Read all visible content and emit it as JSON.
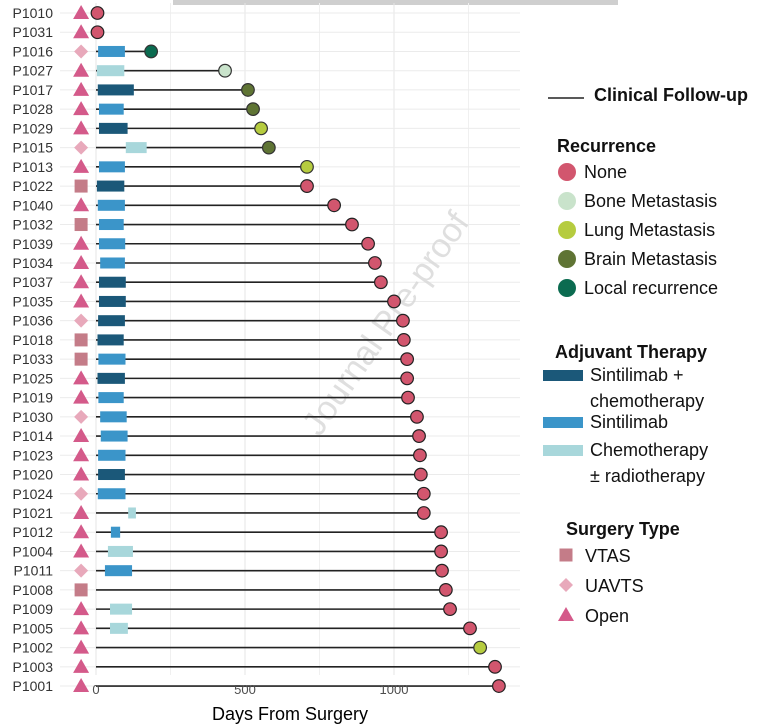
{
  "watermark": "Journal Pre-proof",
  "chart_data": {
    "type": "swimmer",
    "xlabel": "Days From Surgery",
    "xlim": [
      -120,
      1430
    ],
    "xticks": [
      0,
      500,
      1000
    ],
    "grid": true,
    "legend_position": "right",
    "colors": {
      "recurrence": {
        "None": "#d2566e",
        "Bone Metastasis": "#c9e3cb",
        "Lung Metastasis": "#b6cc3f",
        "Brain Metastasis": "#5f7434",
        "Local recurrence": "#0b6b50"
      },
      "therapy": {
        "Sintilimab + chemotherapy": "#1b5879",
        "Sintilimab": "#3b95c9",
        "Chemotherapy ± radiotherapy": "#a8d7db"
      },
      "surgery": {
        "VTAS": "#c47c88",
        "UAVTS": "#e8a9bb",
        "Open": "#d45a8a"
      },
      "followup_line": "#222222"
    },
    "legend": {
      "followup": "Clinical Follow-up",
      "recurrence_title": "Recurrence",
      "recurrence": [
        "None",
        "Bone Metastasis",
        "Lung Metastasis",
        "Brain Metastasis",
        "Local recurrence"
      ],
      "therapy_title": "Adjuvant Therapy",
      "therapy": [
        {
          "key": "Sintilimab + chemotherapy",
          "lines": [
            "Sintilimab +",
            "chemotherapy"
          ]
        },
        {
          "key": "Sintilimab",
          "lines": [
            "Sintilimab"
          ]
        },
        {
          "key": "Chemotherapy ± radiotherapy",
          "lines": [
            "Chemotherapy",
            "± radiotherapy"
          ]
        }
      ],
      "surgery_title": "Surgery Type",
      "surgery": [
        "VTAS",
        "UAVTS",
        "Open"
      ]
    },
    "patients": [
      {
        "id": "P1010",
        "surgery": "Open",
        "therapy": null,
        "therapy_days": null,
        "followup": 5,
        "recurrence": "None"
      },
      {
        "id": "P1031",
        "surgery": "Open",
        "therapy": null,
        "therapy_days": null,
        "followup": 5,
        "recurrence": "None"
      },
      {
        "id": "P1016",
        "surgery": "UAVTS",
        "therapy": "Sintilimab",
        "therapy_days": [
          7,
          97
        ],
        "followup": 185,
        "recurrence": "Local recurrence"
      },
      {
        "id": "P1027",
        "surgery": "Open",
        "therapy": "Chemotherapy ± radiotherapy",
        "therapy_days": [
          3,
          95
        ],
        "followup": 433,
        "recurrence": "Bone Metastasis"
      },
      {
        "id": "P1017",
        "surgery": "Open",
        "therapy": "Sintilimab + chemotherapy",
        "therapy_days": [
          6,
          127
        ],
        "followup": 510,
        "recurrence": "Brain Metastasis"
      },
      {
        "id": "P1028",
        "surgery": "Open",
        "therapy": "Sintilimab",
        "therapy_days": [
          10,
          93
        ],
        "followup": 527,
        "recurrence": "Brain Metastasis"
      },
      {
        "id": "P1029",
        "surgery": "Open",
        "therapy": "Sintilimab + chemotherapy",
        "therapy_days": [
          10,
          106
        ],
        "followup": 554,
        "recurrence": "Lung Metastasis"
      },
      {
        "id": "P1015",
        "surgery": "UAVTS",
        "therapy": "Chemotherapy ± radiotherapy",
        "therapy_days": [
          100,
          170
        ],
        "followup": 580,
        "recurrence": "Brain Metastasis"
      },
      {
        "id": "P1013",
        "surgery": "Open",
        "therapy": "Sintilimab",
        "therapy_days": [
          10,
          97
        ],
        "followup": 708,
        "recurrence": "Lung Metastasis"
      },
      {
        "id": "P1022",
        "surgery": "VTAS",
        "therapy": "Sintilimab + chemotherapy",
        "therapy_days": [
          3,
          95
        ],
        "followup": 708,
        "recurrence": "None"
      },
      {
        "id": "P1040",
        "surgery": "Open",
        "therapy": "Sintilimab",
        "therapy_days": [
          6,
          97
        ],
        "followup": 799,
        "recurrence": "None"
      },
      {
        "id": "P1032",
        "surgery": "VTAS",
        "therapy": "Sintilimab",
        "therapy_days": [
          10,
          93
        ],
        "followup": 859,
        "recurrence": "None"
      },
      {
        "id": "P1039",
        "surgery": "Open",
        "therapy": "Sintilimab",
        "therapy_days": [
          10,
          98
        ],
        "followup": 913,
        "recurrence": "None"
      },
      {
        "id": "P1034",
        "surgery": "Open",
        "therapy": "Sintilimab",
        "therapy_days": [
          14,
          97
        ],
        "followup": 936,
        "recurrence": "None"
      },
      {
        "id": "P1037",
        "surgery": "Open",
        "therapy": "Sintilimab + chemotherapy",
        "therapy_days": [
          10,
          100
        ],
        "followup": 956,
        "recurrence": "None"
      },
      {
        "id": "P1035",
        "surgery": "Open",
        "therapy": "Sintilimab + chemotherapy",
        "therapy_days": [
          10,
          100
        ],
        "followup": 1000,
        "recurrence": "None"
      },
      {
        "id": "P1036",
        "surgery": "UAVTS",
        "therapy": "Sintilimab + chemotherapy",
        "therapy_days": [
          7,
          97
        ],
        "followup": 1030,
        "recurrence": "None"
      },
      {
        "id": "P1018",
        "surgery": "VTAS",
        "therapy": "Sintilimab + chemotherapy",
        "therapy_days": [
          5,
          93
        ],
        "followup": 1033,
        "recurrence": "None"
      },
      {
        "id": "P1033",
        "surgery": "VTAS",
        "therapy": "Sintilimab",
        "therapy_days": [
          8,
          99
        ],
        "followup": 1044,
        "recurrence": "None"
      },
      {
        "id": "P1025",
        "surgery": "Open",
        "therapy": "Sintilimab + chemotherapy",
        "therapy_days": [
          5,
          97
        ],
        "followup": 1044,
        "recurrence": "None"
      },
      {
        "id": "P1019",
        "surgery": "Open",
        "therapy": "Sintilimab",
        "therapy_days": [
          8,
          93
        ],
        "followup": 1047,
        "recurrence": "None"
      },
      {
        "id": "P1030",
        "surgery": "UAVTS",
        "therapy": "Sintilimab",
        "therapy_days": [
          14,
          103
        ],
        "followup": 1077,
        "recurrence": "None"
      },
      {
        "id": "P1014",
        "surgery": "Open",
        "therapy": "Sintilimab",
        "therapy_days": [
          16,
          106
        ],
        "followup": 1084,
        "recurrence": "None"
      },
      {
        "id": "P1023",
        "surgery": "Open",
        "therapy": "Sintilimab",
        "therapy_days": [
          7,
          99
        ],
        "followup": 1087,
        "recurrence": "None"
      },
      {
        "id": "P1020",
        "surgery": "Open",
        "therapy": "Sintilimab + chemotherapy",
        "therapy_days": [
          7,
          97
        ],
        "followup": 1090,
        "recurrence": "None"
      },
      {
        "id": "P1024",
        "surgery": "UAVTS",
        "therapy": "Sintilimab",
        "therapy_days": [
          6,
          99
        ],
        "followup": 1100,
        "recurrence": "None"
      },
      {
        "id": "P1021",
        "surgery": "Open",
        "therapy": "Chemotherapy ± radiotherapy",
        "therapy_days": [
          108,
          134
        ],
        "followup": 1100,
        "recurrence": "None"
      },
      {
        "id": "P1012",
        "surgery": "Open",
        "therapy": "Sintilimab",
        "therapy_days": [
          50,
          81
        ],
        "followup": 1158,
        "recurrence": "None"
      },
      {
        "id": "P1004",
        "surgery": "Open",
        "therapy": "Chemotherapy ± radiotherapy",
        "therapy_days": [
          40,
          124
        ],
        "followup": 1158,
        "recurrence": "None"
      },
      {
        "id": "P1011",
        "surgery": "UAVTS",
        "therapy": "Sintilimab",
        "therapy_days": [
          30,
          121
        ],
        "followup": 1161,
        "recurrence": "None"
      },
      {
        "id": "P1008",
        "surgery": "VTAS",
        "therapy": null,
        "therapy_days": null,
        "followup": 1174,
        "recurrence": "None"
      },
      {
        "id": "P1009",
        "surgery": "Open",
        "therapy": "Chemotherapy ± radiotherapy",
        "therapy_days": [
          47,
          121
        ],
        "followup": 1188,
        "recurrence": "None"
      },
      {
        "id": "P1005",
        "surgery": "Open",
        "therapy": "Chemotherapy ± radiotherapy",
        "therapy_days": [
          47,
          107
        ],
        "followup": 1255,
        "recurrence": "None"
      },
      {
        "id": "P1002",
        "surgery": "Open",
        "therapy": null,
        "therapy_days": null,
        "followup": 1289,
        "recurrence": "Lung Metastasis"
      },
      {
        "id": "P1003",
        "surgery": "Open",
        "therapy": null,
        "therapy_days": null,
        "followup": 1339,
        "recurrence": "None"
      },
      {
        "id": "P1001",
        "surgery": "Open",
        "therapy": null,
        "therapy_days": null,
        "followup": 1352,
        "recurrence": "None"
      }
    ]
  }
}
